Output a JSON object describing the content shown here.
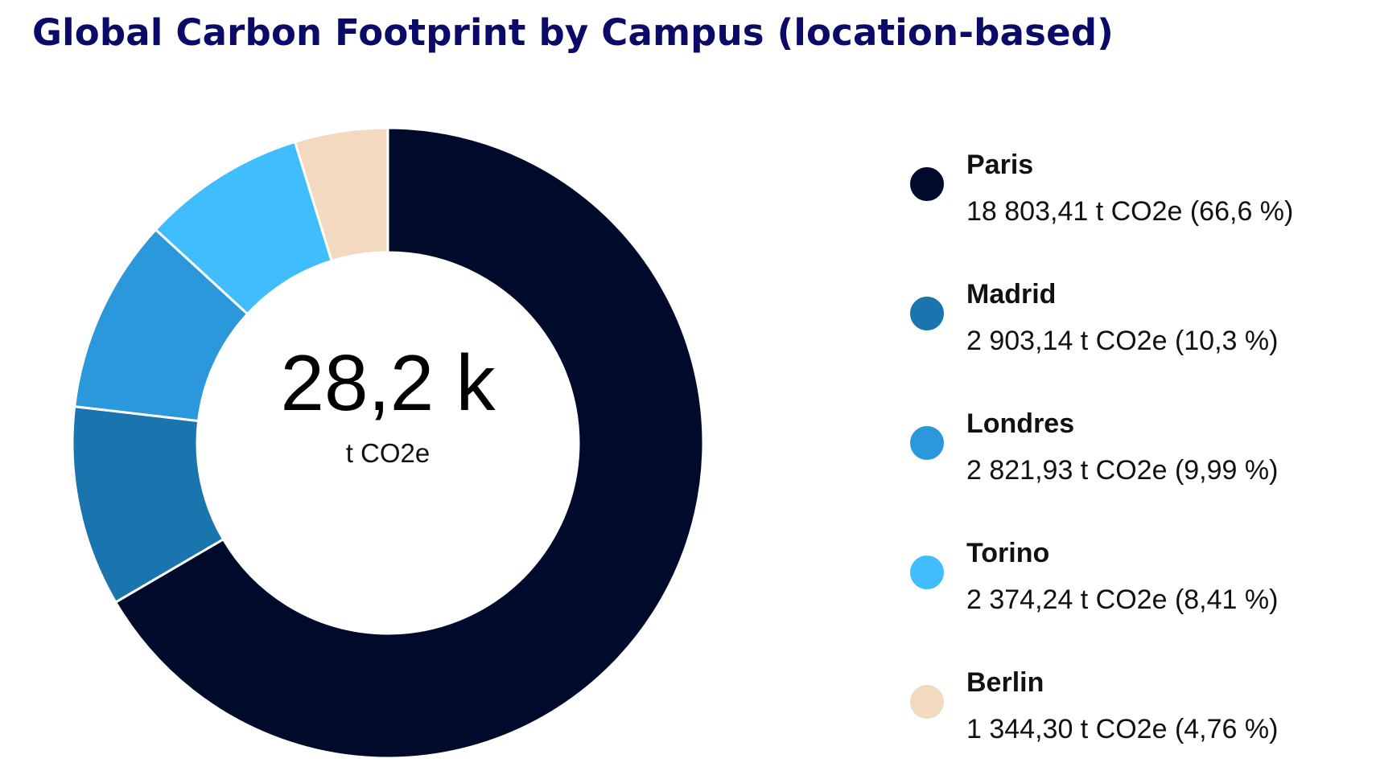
{
  "title": "Global Carbon Footprint by Campus (location-based)",
  "center": {
    "value": "28,2 k",
    "unit": "t CO2e"
  },
  "legend": [
    {
      "name": "Paris",
      "value_text": "18 803,41 t CO2e (66,6 %)",
      "color": "#000a2b"
    },
    {
      "name": "Madrid",
      "value_text": "2 903,14 t CO2e (10,3 %)",
      "color": "#1a74ae"
    },
    {
      "name": "Londres",
      "value_text": "2 821,93 t CO2e (9,99 %)",
      "color": "#2a98da"
    },
    {
      "name": "Torino",
      "value_text": "2 374,24 t CO2e (8,41 %)",
      "color": "#40bdfd"
    },
    {
      "name": "Berlin",
      "value_text": "1 344,30 t CO2e (4,76 %)",
      "color": "#f2d9bf"
    }
  ],
  "chart_data": {
    "type": "pie",
    "variant": "donut",
    "title": "Global Carbon Footprint by Campus (location-based)",
    "categories": [
      "Paris",
      "Madrid",
      "Londres",
      "Torino",
      "Berlin"
    ],
    "values": [
      18803.41,
      2903.14,
      2821.93,
      2374.24,
      1344.3
    ],
    "percentages": [
      66.6,
      10.3,
      9.99,
      8.41,
      4.76
    ],
    "unit": "t CO2e",
    "total_label": "28,2 k",
    "colors": [
      "#000a2b",
      "#1a74ae",
      "#2a98da",
      "#40bdfd",
      "#f2d9bf"
    ],
    "start_angle": "12 o'clock, clockwise",
    "legend_position": "right"
  }
}
